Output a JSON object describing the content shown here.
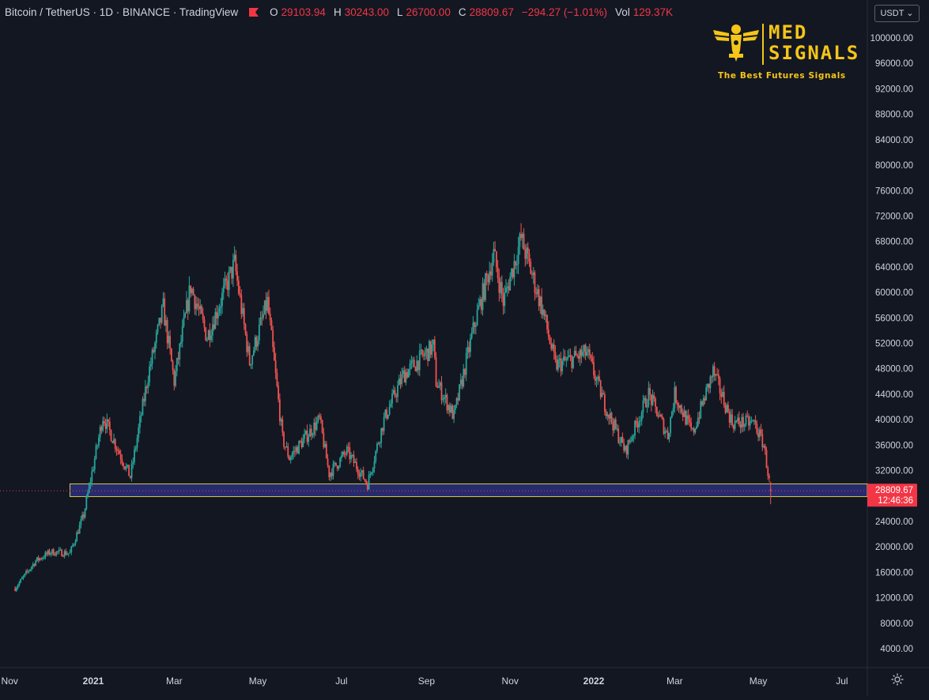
{
  "header": {
    "title": "Bitcoin / TetherUS · 1D · BINANCE · TradingView",
    "open_label": "O",
    "open": "29103.94",
    "high_label": "H",
    "high": "30243.00",
    "low_label": "L",
    "low": "26700.00",
    "close_label": "C",
    "close": "28809.67",
    "change": "−294.27 (−1.01%)",
    "vol_label": "Vol",
    "volume": "129.37K"
  },
  "currency_selector": {
    "label": "USDT ⌄"
  },
  "logo": {
    "brand_line1": "MED",
    "brand_line2": "SIGNALS",
    "tagline": "The Best Futures Signals"
  },
  "price_marker": {
    "price": "28809.67",
    "countdown": "12:46:36"
  },
  "colors": {
    "up": "#26a69a",
    "down": "#ef5350",
    "zone_fill": "#2a2f7a",
    "zone_border": "#d6c94a",
    "last_price": "#f23645",
    "background": "#131722",
    "axis_text": "#d1d4dc",
    "logo_gold": "#f5c518"
  },
  "icons": {
    "settings": "gear-icon",
    "status": "red-flag-icon"
  },
  "chart_data": {
    "type": "candlestick",
    "title": "Bitcoin / TetherUS · 1D · BINANCE · TradingView",
    "y_axis_ticks": [
      "100000.00",
      "96000.00",
      "92000.00",
      "88000.00",
      "84000.00",
      "80000.00",
      "76000.00",
      "72000.00",
      "68000.00",
      "64000.00",
      "60000.00",
      "56000.00",
      "52000.00",
      "48000.00",
      "44000.00",
      "40000.00",
      "36000.00",
      "32000.00",
      "28000.00",
      "24000.00",
      "20000.00",
      "16000.00",
      "12000.00",
      "8000.00",
      "4000.00"
    ],
    "x_axis_ticks": [
      {
        "label": "Nov",
        "date": "2020-11-01",
        "bold": false
      },
      {
        "label": "2021",
        "date": "2021-01-01",
        "bold": true
      },
      {
        "label": "Mar",
        "date": "2021-03-01",
        "bold": false
      },
      {
        "label": "May",
        "date": "2021-05-01",
        "bold": false
      },
      {
        "label": "Jul",
        "date": "2021-07-01",
        "bold": false
      },
      {
        "label": "Sep",
        "date": "2021-09-01",
        "bold": false
      },
      {
        "label": "Nov",
        "date": "2021-11-01",
        "bold": false
      },
      {
        "label": "2022",
        "date": "2022-01-01",
        "bold": true
      },
      {
        "label": "Mar",
        "date": "2022-03-01",
        "bold": false
      },
      {
        "label": "May",
        "date": "2022-05-01",
        "bold": false
      },
      {
        "label": "Jul",
        "date": "2022-07-01",
        "bold": false
      }
    ],
    "x_range": [
      "2020-11-01",
      "2022-07-31"
    ],
    "y_range": [
      0,
      104000
    ],
    "price_path_approx": [
      {
        "date": "2020-11-05",
        "close": 13500
      },
      {
        "date": "2020-11-20",
        "close": 17800
      },
      {
        "date": "2020-12-01",
        "close": 19200
      },
      {
        "date": "2020-12-15",
        "close": 19000
      },
      {
        "date": "2020-12-25",
        "close": 25000
      },
      {
        "date": "2021-01-08",
        "close": 40500
      },
      {
        "date": "2021-01-28",
        "close": 31000
      },
      {
        "date": "2021-02-10",
        "close": 47000
      },
      {
        "date": "2021-02-21",
        "close": 57500
      },
      {
        "date": "2021-03-01",
        "close": 46000
      },
      {
        "date": "2021-03-13",
        "close": 61000
      },
      {
        "date": "2021-03-25",
        "close": 53000
      },
      {
        "date": "2021-04-14",
        "close": 64500
      },
      {
        "date": "2021-04-25",
        "close": 49000
      },
      {
        "date": "2021-05-08",
        "close": 58500
      },
      {
        "date": "2021-05-19",
        "close": 37000
      },
      {
        "date": "2021-05-24",
        "close": 34000
      },
      {
        "date": "2021-06-15",
        "close": 40000
      },
      {
        "date": "2021-06-22",
        "close": 31500
      },
      {
        "date": "2021-07-05",
        "close": 35000
      },
      {
        "date": "2021-07-20",
        "close": 29900
      },
      {
        "date": "2021-08-01",
        "close": 40000
      },
      {
        "date": "2021-08-15",
        "close": 47000
      },
      {
        "date": "2021-09-06",
        "close": 51500
      },
      {
        "date": "2021-09-08",
        "close": 46000
      },
      {
        "date": "2021-09-21",
        "close": 40500
      },
      {
        "date": "2021-10-06",
        "close": 55000
      },
      {
        "date": "2021-10-20",
        "close": 66000
      },
      {
        "date": "2021-10-27",
        "close": 58500
      },
      {
        "date": "2021-11-09",
        "close": 68500
      },
      {
        "date": "2021-11-25",
        "close": 57000
      },
      {
        "date": "2021-12-04",
        "close": 48500
      },
      {
        "date": "2021-12-27",
        "close": 50500
      },
      {
        "date": "2022-01-10",
        "close": 41800
      },
      {
        "date": "2022-01-24",
        "close": 35000
      },
      {
        "date": "2022-02-10",
        "close": 44000
      },
      {
        "date": "2022-02-24",
        "close": 37500
      },
      {
        "date": "2022-03-01",
        "close": 44000
      },
      {
        "date": "2022-03-14",
        "close": 37800
      },
      {
        "date": "2022-03-29",
        "close": 47500
      },
      {
        "date": "2022-04-12",
        "close": 39500
      },
      {
        "date": "2022-04-28",
        "close": 39500
      },
      {
        "date": "2022-05-05",
        "close": 36000
      },
      {
        "date": "2022-05-10",
        "close": 28809.67
      }
    ],
    "support_zone": {
      "from_date": "2020-12-15",
      "to_date": "2022-07-31",
      "low": 27900,
      "high": 29900
    },
    "last_price": 28809.67
  }
}
